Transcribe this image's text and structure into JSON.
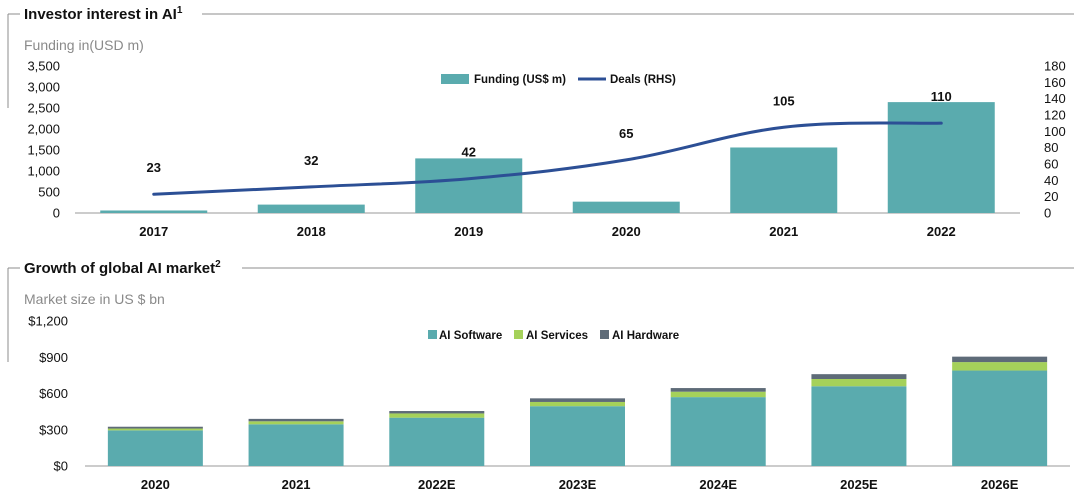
{
  "colors": {
    "funding": "#5aabae",
    "deals": "#2c4f95",
    "software": "#5aabae",
    "services": "#a5d15a",
    "hardware": "#5e6b78"
  },
  "sections": {
    "investor": {
      "title": "Investor interest in AI",
      "title_sup": "1",
      "subtitle": "Funding in(USD m)"
    },
    "market": {
      "title": "Growth of global AI market",
      "title_sup": "2",
      "subtitle": "Market size in US $ bn"
    }
  },
  "chart_data": [
    {
      "type": "bar",
      "title": "Investor interest in AI",
      "ylabel": "Funding in(USD m)",
      "categories": [
        "2017",
        "2018",
        "2019",
        "2020",
        "2021",
        "2022"
      ],
      "ylim": [
        0,
        3500
      ],
      "yticks": [
        "0",
        "500",
        "1,000",
        "1,500",
        "2,000",
        "2,500",
        "3,000",
        "3,500"
      ],
      "y2lim": [
        0,
        180
      ],
      "y2ticks": [
        "0",
        "20",
        "40",
        "60",
        "80",
        "100",
        "120",
        "140",
        "160",
        "180"
      ],
      "series": [
        {
          "name": "Funding (US$ m)",
          "kind": "bar",
          "axis": "left",
          "values": [
            60,
            200,
            1300,
            270,
            1560,
            2640
          ]
        },
        {
          "name": "Deals (RHS)",
          "kind": "line",
          "axis": "right",
          "values": [
            23,
            32,
            42,
            65,
            105,
            110
          ]
        }
      ],
      "data_labels": [
        "23",
        "32",
        "42",
        "65",
        "105",
        "110"
      ],
      "legend": "top-center",
      "grid": false
    },
    {
      "type": "bar",
      "stacked": true,
      "title": "Growth of global AI market",
      "ylabel": "Market size in US $ bn",
      "categories": [
        "2020",
        "2021",
        "2022E",
        "2023E",
        "2024E",
        "2025E",
        "2026E"
      ],
      "ylim": [
        0,
        1200
      ],
      "yticks": [
        "$0",
        "$300",
        "$600",
        "$900",
        "$1,200"
      ],
      "series": [
        {
          "name": "AI Software",
          "values": [
            295,
            345,
            400,
            495,
            570,
            660,
            790
          ]
        },
        {
          "name": "AI Services",
          "values": [
            15,
            25,
            35,
            35,
            45,
            60,
            70
          ]
        },
        {
          "name": "AI Hardware",
          "values": [
            15,
            20,
            20,
            30,
            30,
            40,
            45
          ]
        }
      ],
      "legend": "top-center",
      "grid": false
    }
  ]
}
